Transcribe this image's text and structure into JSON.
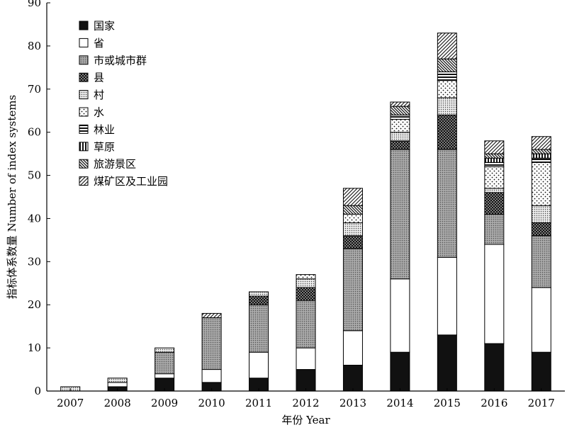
{
  "chart_data": {
    "type": "bar",
    "stacked": true,
    "title": "",
    "xlabel": "年份 Year",
    "ylabel": "指标体系数量 Number of index systems",
    "ylim": [
      0,
      90
    ],
    "yticks": [
      0,
      10,
      20,
      30,
      40,
      50,
      60,
      70,
      80,
      90
    ],
    "grid": false,
    "legend_position": "top-left",
    "categories": [
      "2007",
      "2008",
      "2009",
      "2010",
      "2011",
      "2012",
      "2013",
      "2014",
      "2015",
      "2016",
      "2017"
    ],
    "series": [
      {
        "name": "国家",
        "pattern": "solid-black",
        "values": [
          0,
          1,
          3,
          2,
          3,
          5,
          6,
          9,
          13,
          11,
          9
        ]
      },
      {
        "name": "省",
        "pattern": "white",
        "values": [
          0,
          1,
          1,
          3,
          6,
          5,
          8,
          17,
          18,
          23,
          15
        ]
      },
      {
        "name": "市或城市群",
        "pattern": "fine-dots-gray",
        "values": [
          0,
          0,
          5,
          12,
          11,
          11,
          19,
          30,
          25,
          7,
          12
        ]
      },
      {
        "name": "县",
        "pattern": "dense-black-dots",
        "values": [
          0,
          0,
          0,
          0,
          2,
          3,
          3,
          2,
          8,
          5,
          3
        ]
      },
      {
        "name": "村",
        "pattern": "sparse-dots",
        "values": [
          1,
          1,
          1,
          0,
          1,
          2,
          3,
          2,
          4,
          1,
          4
        ]
      },
      {
        "name": "水",
        "pattern": "white-dots",
        "values": [
          0,
          0,
          0,
          0,
          0,
          1,
          2,
          3,
          4,
          5,
          10
        ]
      },
      {
        "name": "林业",
        "pattern": "horizontal-lines",
        "values": [
          0,
          0,
          0,
          0,
          0,
          0,
          0,
          1,
          2,
          1,
          1
        ]
      },
      {
        "name": "草原",
        "pattern": "vertical-lines",
        "values": [
          0,
          0,
          0,
          0,
          0,
          0,
          0,
          0,
          0,
          1,
          1
        ]
      },
      {
        "name": "旅游景区",
        "pattern": "backslash-hatch",
        "values": [
          0,
          0,
          0,
          0,
          0,
          0,
          2,
          2,
          3,
          1,
          1
        ]
      },
      {
        "name": "煤矿区及工业园",
        "pattern": "slash-hatch",
        "values": [
          0,
          0,
          0,
          1,
          0,
          0,
          4,
          1,
          6,
          3,
          3
        ]
      }
    ]
  }
}
